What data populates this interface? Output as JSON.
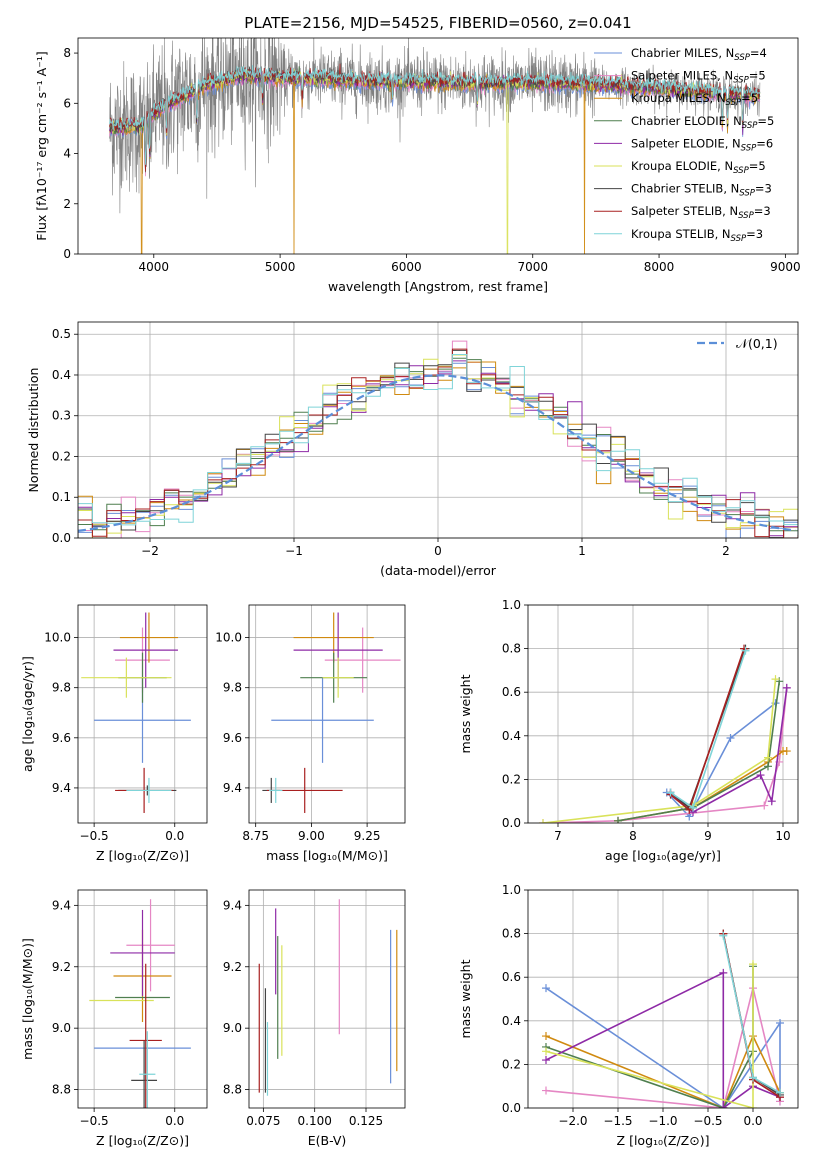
{
  "title": "PLATE=2156, MJD=54525, FIBERID=0560, z=0.041",
  "series_colors": [
    "#6a8fd8",
    "#e587c4",
    "#d08a10",
    "#4f7f4f",
    "#8e2aa6",
    "#d9e25a",
    "#444444",
    "#a82020",
    "#7fd4d8"
  ],
  "legend": [
    {
      "prefix": "Chabrier MILES, N",
      "sub": "SSP",
      "suffix": "=4",
      "color": "#6a8fd8"
    },
    {
      "prefix": "Salpeter MILES, N",
      "sub": "SSP",
      "suffix": "=5",
      "color": "#e587c4"
    },
    {
      "prefix": "Kroupa MILES, N",
      "sub": "SSP",
      "suffix": "=5",
      "color": "#d08a10"
    },
    {
      "prefix": "Chabrier ELODIE, N",
      "sub": "SSP",
      "suffix": "=5",
      "color": "#4f7f4f"
    },
    {
      "prefix": "Salpeter ELODIE, N",
      "sub": "SSP",
      "suffix": "=6",
      "color": "#8e2aa6"
    },
    {
      "prefix": "Kroupa ELODIE, N",
      "sub": "SSP",
      "suffix": "=5",
      "color": "#d9e25a"
    },
    {
      "prefix": "Chabrier STELIB, N",
      "sub": "SSP",
      "suffix": "=3",
      "color": "#444444"
    },
    {
      "prefix": "Salpeter STELIB, N",
      "sub": "SSP",
      "suffix": "=3",
      "color": "#a82020"
    },
    {
      "prefix": "Kroupa STELIB, N",
      "sub": "SSP",
      "suffix": "=3",
      "color": "#7fd4d8"
    }
  ],
  "chart_data": [
    {
      "id": "spectrum",
      "type": "line",
      "xlabel": "wavelength [Angstrom, rest frame]",
      "ylabel": "Flux [fλ10⁻¹⁷ erg cm⁻² s⁻¹ A⁻¹]",
      "xlim": [
        3400,
        9100
      ],
      "ylim": [
        0,
        8.6
      ],
      "xticks": [
        4000,
        5000,
        6000,
        7000,
        8000,
        9000
      ],
      "yticks": [
        0,
        2,
        4,
        6,
        8
      ],
      "data_range": [
        3650,
        8800
      ],
      "continuum": [
        [
          3650,
          5.0
        ],
        [
          3900,
          5.1
        ],
        [
          4000,
          5.6
        ],
        [
          4200,
          6.2
        ],
        [
          4400,
          6.7
        ],
        [
          4700,
          7.1
        ],
        [
          5000,
          7.0
        ],
        [
          5300,
          7.0
        ],
        [
          5600,
          6.9
        ],
        [
          6000,
          6.85
        ],
        [
          6500,
          6.8
        ],
        [
          7000,
          6.8
        ],
        [
          7500,
          6.75
        ],
        [
          8000,
          6.6
        ],
        [
          8500,
          6.4
        ],
        [
          8800,
          6.3
        ]
      ],
      "dips": [
        [
          3934,
          1.9
        ],
        [
          3968,
          1.6
        ],
        [
          4101,
          1.2
        ],
        [
          4340,
          1.3
        ],
        [
          4861,
          1.0
        ],
        [
          5175,
          0.9
        ],
        [
          5890,
          0.7
        ],
        [
          6563,
          0.8
        ],
        [
          8500,
          1.3
        ],
        [
          8542,
          1.3
        ],
        [
          8662,
          1.3
        ]
      ],
      "model_drops": [
        [
          3905,
          "#d08a10"
        ],
        [
          5110,
          "#d08a10"
        ],
        [
          6800,
          "#d9e25a"
        ],
        [
          7410,
          "#d08a10"
        ]
      ],
      "legend_position": "upper-right"
    },
    {
      "id": "residuals",
      "type": "step",
      "xlabel": "(data-model)/error",
      "ylabel": "Normed distribution",
      "xlim": [
        -2.5,
        2.5
      ],
      "ylim": [
        0,
        0.53
      ],
      "xticks": [
        -2,
        -1,
        0,
        1,
        2
      ],
      "yticks": [
        0.0,
        0.1,
        0.2,
        0.3,
        0.4,
        0.5
      ],
      "bin_width": 0.1,
      "reference": {
        "label": "𝒩(0,1)",
        "color": "#5b8fd8",
        "mean": 0,
        "sigma": 1
      },
      "legend_position": "upper-right"
    },
    {
      "id": "z-age",
      "type": "errorbar",
      "xlabel": "Z [log₁₀(Z/Z⊙)]",
      "ylabel": "age  [log₁₀(age/yr)]",
      "xlim": [
        -0.6,
        0.2
      ],
      "ylim": [
        9.26,
        10.13
      ],
      "xticks": [
        -0.5,
        0.0
      ],
      "yticks": [
        9.4,
        9.6,
        9.8,
        10.0
      ],
      "points": [
        {
          "c": 0,
          "x": -0.2,
          "xe": 0.3,
          "y": 9.67,
          "ye": 0.17
        },
        {
          "c": 1,
          "x": -0.2,
          "xe": 0.17,
          "y": 9.91,
          "ye": 0.13
        },
        {
          "c": 2,
          "x": -0.16,
          "xe": 0.18,
          "y": 10.0,
          "ye": 0.1
        },
        {
          "c": 3,
          "x": -0.2,
          "xe": 0.15,
          "y": 9.84,
          "ye": 0.1
        },
        {
          "c": 4,
          "x": -0.18,
          "xe": 0.2,
          "y": 9.95,
          "ye": 0.15
        },
        {
          "c": 5,
          "x": -0.3,
          "xe": 0.28,
          "y": 9.84,
          "ye": 0.08
        },
        {
          "c": 6,
          "x": -0.17,
          "xe": 0.18,
          "y": 9.39,
          "ye": 0.02
        },
        {
          "c": 7,
          "x": -0.19,
          "xe": 0.18,
          "y": 9.39,
          "ye": 0.09
        },
        {
          "c": 8,
          "x": -0.16,
          "xe": 0.14,
          "y": 9.39,
          "ye": 0.05
        }
      ]
    },
    {
      "id": "mass-age",
      "type": "errorbar",
      "xlabel": "mass [log₁₀(M/M⊙)]",
      "ylabel": "",
      "xlim": [
        8.72,
        9.42
      ],
      "ylim": [
        9.26,
        10.13
      ],
      "xticks": [
        8.75,
        9.0,
        9.25
      ],
      "yticks": [
        9.4,
        9.6,
        9.8,
        10.0
      ],
      "points": [
        {
          "c": 0,
          "x": 9.05,
          "xe": 0.23,
          "y": 9.67,
          "ye": 0.17
        },
        {
          "c": 1,
          "x": 9.23,
          "xe": 0.17,
          "y": 9.91,
          "ye": 0.13
        },
        {
          "c": 2,
          "x": 9.1,
          "xe": 0.18,
          "y": 10.0,
          "ye": 0.1
        },
        {
          "c": 3,
          "x": 9.1,
          "xe": 0.15,
          "y": 9.84,
          "ye": 0.1
        },
        {
          "c": 4,
          "x": 9.12,
          "xe": 0.2,
          "y": 9.95,
          "ye": 0.15
        },
        {
          "c": 5,
          "x": 9.12,
          "xe": 0.07,
          "y": 9.84,
          "ye": 0.08
        },
        {
          "c": 6,
          "x": 8.82,
          "xe": 0.04,
          "y": 9.39,
          "ye": 0.05
        },
        {
          "c": 7,
          "x": 8.97,
          "xe": 0.17,
          "y": 9.39,
          "ye": 0.09
        },
        {
          "c": 8,
          "x": 8.84,
          "xe": 0.03,
          "y": 9.39,
          "ye": 0.05
        }
      ]
    },
    {
      "id": "age-weight",
      "type": "line",
      "xlabel": "age  [log₁₀(age/yr)]",
      "ylabel": "mass weight",
      "xlim": [
        6.6,
        10.2
      ],
      "ylim": [
        0,
        1.0
      ],
      "xticks": [
        7,
        8,
        9,
        10
      ],
      "yticks": [
        0.0,
        0.2,
        0.4,
        0.6,
        0.8,
        1.0
      ],
      "series": [
        {
          "c": 0,
          "x": [
            8.45,
            8.75,
            9.3,
            9.9
          ],
          "y": [
            0.14,
            0.03,
            0.39,
            0.55
          ]
        },
        {
          "c": 1,
          "x": [
            6.8,
            7.8,
            9.75,
            9.95,
            10.05
          ],
          "y": [
            0.0,
            0.01,
            0.08,
            0.28,
            0.62
          ]
        },
        {
          "c": 2,
          "x": [
            7.8,
            8.8,
            9.8,
            10.0,
            10.05
          ],
          "y": [
            0.01,
            0.07,
            0.28,
            0.33,
            0.33
          ]
        },
        {
          "c": 3,
          "x": [
            7.8,
            8.8,
            9.8,
            9.95
          ],
          "y": [
            0.01,
            0.07,
            0.26,
            0.65
          ]
        },
        {
          "c": 4,
          "x": [
            8.5,
            8.8,
            9.7,
            9.85,
            10.05
          ],
          "y": [
            0.14,
            0.05,
            0.22,
            0.1,
            0.62
          ]
        },
        {
          "c": 5,
          "x": [
            6.8,
            8.8,
            9.8,
            9.9
          ],
          "y": [
            0.0,
            0.08,
            0.3,
            0.66
          ]
        },
        {
          "c": 6,
          "x": [
            8.5,
            8.75,
            9.5
          ],
          "y": [
            0.14,
            0.07,
            0.8
          ]
        },
        {
          "c": 7,
          "x": [
            8.5,
            8.75,
            9.48
          ],
          "y": [
            0.13,
            0.06,
            0.8
          ]
        },
        {
          "c": 8,
          "x": [
            8.5,
            8.8,
            9.5
          ],
          "y": [
            0.14,
            0.07,
            0.79
          ]
        }
      ]
    },
    {
      "id": "z-mass",
      "type": "errorbar",
      "xlabel": "Z [log₁₀(Z/Z⊙)]",
      "ylabel": "mass [log₁₀(M/M⊙)]",
      "xlim": [
        -0.6,
        0.2
      ],
      "ylim": [
        8.74,
        9.45
      ],
      "xticks": [
        -0.5,
        0.0
      ],
      "yticks": [
        8.8,
        9.0,
        9.2,
        9.4
      ],
      "points": [
        {
          "c": 0,
          "x": -0.2,
          "xe": 0.3,
          "y": 8.935,
          "ye": 0.0
        },
        {
          "c": 1,
          "x": -0.15,
          "xe": 0.15,
          "y": 9.27,
          "ye": 0.15
        },
        {
          "c": 2,
          "x": -0.2,
          "xe": 0.18,
          "y": 9.17,
          "ye": 0.15
        },
        {
          "c": 3,
          "x": -0.2,
          "xe": 0.17,
          "y": 9.1,
          "ye": 0.0
        },
        {
          "c": 4,
          "x": -0.2,
          "xe": 0.2,
          "y": 9.245,
          "ye": 0.14
        },
        {
          "c": 5,
          "x": -0.33,
          "xe": 0.2,
          "y": 9.09,
          "ye": 0.0
        },
        {
          "c": 6,
          "x": -0.19,
          "xe": 0.08,
          "y": 8.83,
          "ye": 0.13
        },
        {
          "c": 7,
          "x": -0.18,
          "xe": 0.1,
          "y": 8.96,
          "ye": 0.25
        },
        {
          "c": 8,
          "x": -0.17,
          "xe": 0.05,
          "y": 8.85,
          "ye": 0.14
        }
      ]
    },
    {
      "id": "ebv-mass",
      "type": "errorbar",
      "xlabel": "E(B-V)",
      "ylabel": "",
      "xlim": [
        0.068,
        0.144
      ],
      "ylim": [
        8.74,
        9.45
      ],
      "xticks": [
        0.075,
        0.1,
        0.125
      ],
      "yticks": [
        8.8,
        9.0,
        9.2,
        9.4
      ],
      "points": [
        {
          "c": 0,
          "x": 0.137,
          "xe": 0.0,
          "y": 9.07,
          "ye": 0.25
        },
        {
          "c": 1,
          "x": 0.112,
          "xe": 0.0,
          "y": 9.2,
          "ye": 0.22
        },
        {
          "c": 2,
          "x": 0.14,
          "xe": 0.0,
          "y": 9.09,
          "ye": 0.23
        },
        {
          "c": 3,
          "x": 0.082,
          "xe": 0.0,
          "y": 9.1,
          "ye": 0.2
        },
        {
          "c": 4,
          "x": 0.081,
          "xe": 0.0,
          "y": 9.25,
          "ye": 0.14
        },
        {
          "c": 5,
          "x": 0.084,
          "xe": 0.0,
          "y": 9.09,
          "ye": 0.18
        },
        {
          "c": 6,
          "x": 0.076,
          "xe": 0.0,
          "y": 8.96,
          "ye": 0.17
        },
        {
          "c": 7,
          "x": 0.073,
          "xe": 0.0,
          "y": 9.0,
          "ye": 0.21
        },
        {
          "c": 8,
          "x": 0.077,
          "xe": 0.0,
          "y": 8.9,
          "ye": 0.12
        }
      ]
    },
    {
      "id": "z-weight",
      "type": "line",
      "xlabel": "Z [log₁₀(Z/Z⊙)]",
      "ylabel": "mass weight",
      "xlim": [
        -2.5,
        0.5
      ],
      "ylim": [
        0,
        1.0
      ],
      "xticks": [
        -2.0,
        -1.5,
        -1.0,
        -0.5,
        0.0
      ],
      "yticks": [
        0.0,
        0.2,
        0.4,
        0.6,
        0.8,
        1.0
      ],
      "series": [
        {
          "c": 0,
          "x": [
            -2.3,
            -0.33,
            0.3,
            0.3
          ],
          "y": [
            0.55,
            0.0,
            0.39,
            0.03
          ]
        },
        {
          "c": 1,
          "x": [
            -2.3,
            -0.33,
            0.0,
            0.3
          ],
          "y": [
            0.08,
            0.0,
            0.55,
            0.03
          ]
        },
        {
          "c": 2,
          "x": [
            -2.3,
            -0.33,
            0.0,
            0.3
          ],
          "y": [
            0.33,
            0.0,
            0.33,
            0.07
          ]
        },
        {
          "c": 3,
          "x": [
            -2.3,
            -0.33,
            0.0,
            0.0
          ],
          "y": [
            0.28,
            0.0,
            0.26,
            0.65
          ]
        },
        {
          "c": 4,
          "x": [
            -2.3,
            -0.33,
            -0.33,
            0.0,
            0.3
          ],
          "y": [
            0.22,
            0.62,
            0.0,
            0.1,
            0.05
          ]
        },
        {
          "c": 5,
          "x": [
            -2.3,
            0.0,
            0.0
          ],
          "y": [
            0.26,
            0.0,
            0.66
          ]
        },
        {
          "c": 6,
          "x": [
            -0.33,
            0.0,
            0.3
          ],
          "y": [
            0.8,
            0.14,
            0.06
          ]
        },
        {
          "c": 7,
          "x": [
            -0.33,
            0.0,
            0.3
          ],
          "y": [
            0.8,
            0.13,
            0.05
          ]
        },
        {
          "c": 8,
          "x": [
            -0.33,
            0.0,
            0.3
          ],
          "y": [
            0.79,
            0.14,
            0.07
          ]
        }
      ]
    }
  ]
}
